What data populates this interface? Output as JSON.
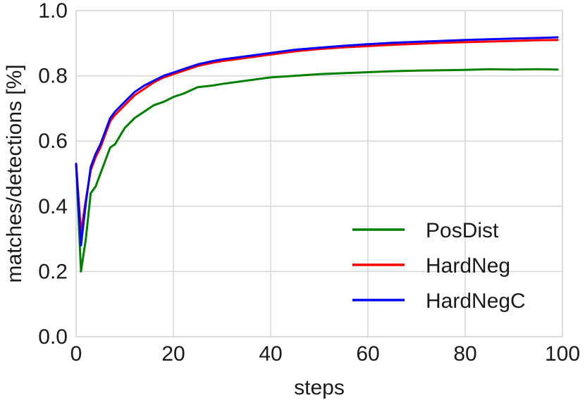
{
  "chart_data": {
    "type": "line",
    "title": "",
    "xlabel": "steps",
    "ylabel": "matches/detections [%]",
    "xlim": [
      0,
      100
    ],
    "ylim": [
      0.0,
      1.0
    ],
    "x_ticks": [
      0,
      20,
      40,
      60,
      80,
      100
    ],
    "x_tick_labels": [
      "0",
      "20",
      "40",
      "60",
      "80",
      "100"
    ],
    "y_ticks": [
      0.0,
      0.2,
      0.4,
      0.6,
      0.8,
      1.0
    ],
    "y_tick_labels": [
      "0.0",
      "0.2",
      "0.4",
      "0.6",
      "0.8",
      "1.0"
    ],
    "grid": true,
    "legend_position": "lower-right",
    "x": [
      0,
      1,
      2,
      3,
      4,
      5,
      6,
      7,
      8,
      10,
      12,
      14,
      16,
      18,
      20,
      22,
      25,
      28,
      30,
      35,
      40,
      45,
      50,
      55,
      60,
      65,
      70,
      75,
      80,
      85,
      90,
      95,
      99
    ],
    "series": [
      {
        "name": "PosDist",
        "color": "#008000",
        "values": [
          0.53,
          0.2,
          0.3,
          0.44,
          0.46,
          0.5,
          0.54,
          0.58,
          0.59,
          0.64,
          0.67,
          0.69,
          0.71,
          0.72,
          0.735,
          0.745,
          0.765,
          0.77,
          0.775,
          0.785,
          0.795,
          0.8,
          0.805,
          0.808,
          0.811,
          0.814,
          0.816,
          0.817,
          0.818,
          0.82,
          0.819,
          0.82,
          0.819
        ]
      },
      {
        "name": "HardNeg",
        "color": "#ff0000",
        "values": [
          0.53,
          0.32,
          0.42,
          0.51,
          0.55,
          0.58,
          0.62,
          0.66,
          0.68,
          0.71,
          0.74,
          0.76,
          0.78,
          0.795,
          0.805,
          0.815,
          0.83,
          0.84,
          0.845,
          0.855,
          0.865,
          0.875,
          0.882,
          0.887,
          0.891,
          0.895,
          0.898,
          0.901,
          0.903,
          0.905,
          0.907,
          0.909,
          0.91
        ]
      },
      {
        "name": "HardNegC",
        "color": "#0000ff",
        "values": [
          0.53,
          0.28,
          0.41,
          0.52,
          0.56,
          0.59,
          0.63,
          0.67,
          0.69,
          0.72,
          0.75,
          0.77,
          0.785,
          0.8,
          0.81,
          0.82,
          0.835,
          0.845,
          0.85,
          0.86,
          0.87,
          0.88,
          0.886,
          0.892,
          0.897,
          0.901,
          0.904,
          0.907,
          0.91,
          0.912,
          0.914,
          0.916,
          0.918
        ]
      }
    ]
  }
}
